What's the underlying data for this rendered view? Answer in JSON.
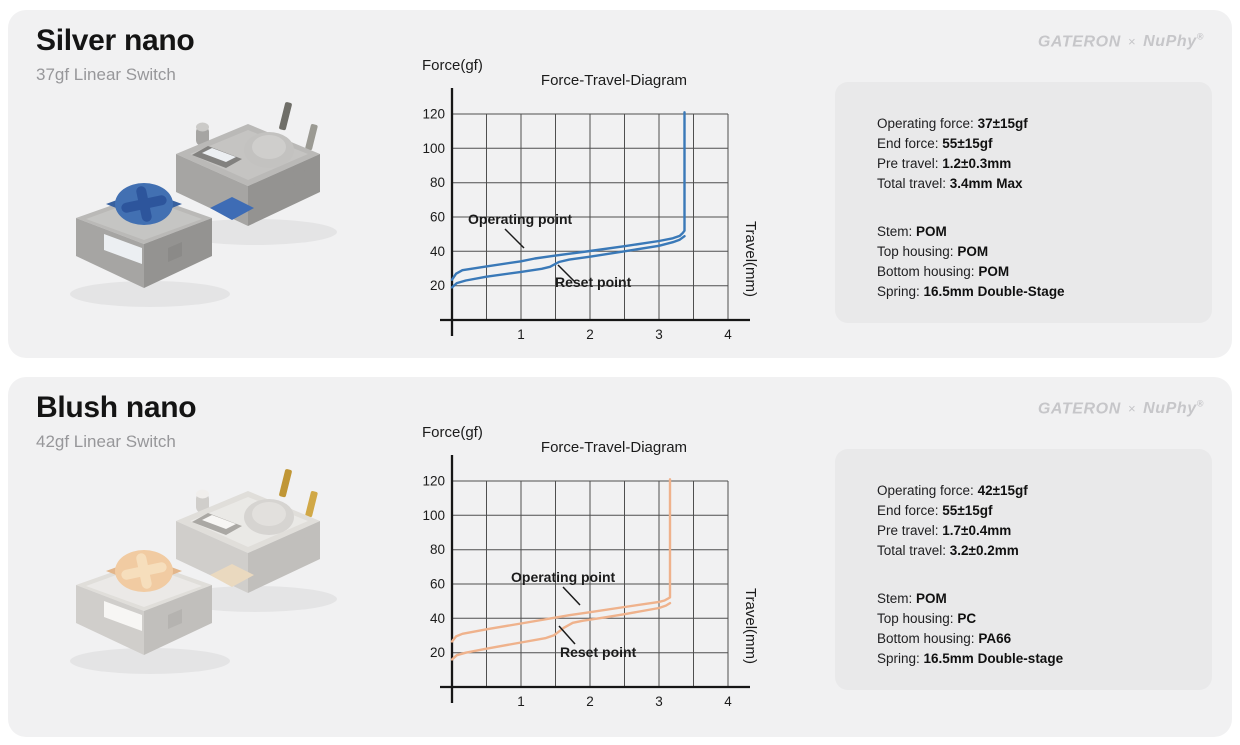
{
  "brand": {
    "gateron": "GATERON",
    "times": "×",
    "nuphy": "NuPhy",
    "reg": "®"
  },
  "cards": [
    {
      "title": "Silver nano",
      "subtitle": "37gf Linear Switch",
      "specs": {
        "group1": [
          {
            "label": "Operating force",
            "value": "37±15gf"
          },
          {
            "label": "End force",
            "value": "55±15gf"
          },
          {
            "label": "Pre travel",
            "value": "1.2±0.3mm"
          },
          {
            "label": "Total travel",
            "value": "3.4mm Max"
          }
        ],
        "group2": [
          {
            "label": "Stem",
            "value": "POM"
          },
          {
            "label": "Top housing",
            "value": "POM"
          },
          {
            "label": "Bottom housing",
            "value": "POM"
          },
          {
            "label": "Spring",
            "value": "16.5mm Double-Stage"
          }
        ]
      },
      "art": {
        "top": "#bab9b7",
        "left": "#a6a5a3",
        "right": "#949391",
        "rim": "#cbcac8",
        "wellDark": "#82817f",
        "window": "#eceff2",
        "dome": "#c3c2c0",
        "domeTop": "#cfcecc",
        "stem": "#4270b2",
        "stemDark": "#38619f",
        "cross": "#2d559c",
        "pin1": "#6f6e68",
        "pin2": "#9b9a93",
        "accent": "#3e6cb5"
      }
    },
    {
      "title": "Blush nano",
      "subtitle": "42gf Linear Switch",
      "specs": {
        "group1": [
          {
            "label": "Operating force",
            "value": "42±15gf"
          },
          {
            "label": "End force",
            "value": "55±15gf"
          },
          {
            "label": "Pre travel",
            "value": "1.7±0.4mm"
          },
          {
            "label": "Total travel",
            "value": "3.2±0.2mm"
          }
        ],
        "group2": [
          {
            "label": "Stem",
            "value": "POM"
          },
          {
            "label": "Top housing",
            "value": "PC"
          },
          {
            "label": "Bottom housing",
            "value": "PA66"
          },
          {
            "label": "Spring",
            "value": "16.5mm Double-stage"
          }
        ]
      },
      "art": {
        "top": "#e0deda",
        "left": "#d0cecb",
        "right": "#c1bfbc",
        "rim": "#f0eeec",
        "wellDark": "#aaa8a4",
        "window": "#f7f6f4",
        "dome": "#d6d4d1",
        "domeTop": "#e2e0dd",
        "stem": "#f1cba2",
        "stemDark": "#e3b68b",
        "cross": "#f6debc",
        "pin1": "#c09635",
        "pin2": "#d1a847",
        "accent": "#ead9bf"
      }
    }
  ],
  "chart_data": [
    {
      "type": "line",
      "title": "Force-Travel-Diagram",
      "xlabel": "Travel(mm)",
      "ylabel": "Force(gf)",
      "xlim": [
        0,
        4
      ],
      "ylim": [
        0,
        120
      ],
      "x_ticks": [
        1,
        2,
        3,
        4
      ],
      "y_ticks": [
        20,
        40,
        60,
        80,
        100,
        120
      ],
      "grid": true,
      "legend": "none",
      "annotations": [
        {
          "text": "Operating point",
          "x": 1.2,
          "y": 37
        },
        {
          "text": "Reset point",
          "x": 1.5,
          "y": 34
        }
      ],
      "series": [
        {
          "name": "press",
          "color": "#3a79b8",
          "points": [
            [
              0,
              23.5
            ],
            [
              0.06,
              27
            ],
            [
              0.15,
              29
            ],
            [
              0.5,
              31.2
            ],
            [
              1.0,
              34.2
            ],
            [
              1.2,
              35.8
            ],
            [
              1.5,
              37.5
            ],
            [
              2.0,
              40.2
            ],
            [
              2.5,
              43
            ],
            [
              3.0,
              46
            ],
            [
              3.2,
              47.6
            ],
            [
              3.3,
              49
            ],
            [
              3.34,
              50.5
            ],
            [
              3.37,
              52
            ],
            [
              3.37,
              121
            ]
          ]
        },
        {
          "name": "release",
          "color": "#3a79b8",
          "points": [
            [
              0,
              19
            ],
            [
              0.07,
              21.5
            ],
            [
              0.2,
              23
            ],
            [
              0.5,
              25.2
            ],
            [
              1.0,
              28
            ],
            [
              1.3,
              29.8
            ],
            [
              1.42,
              31
            ],
            [
              1.55,
              33.8
            ],
            [
              1.7,
              35.2
            ],
            [
              2.0,
              36.9
            ],
            [
              2.5,
              40
            ],
            [
              3.0,
              43.2
            ],
            [
              3.2,
              45.3
            ],
            [
              3.3,
              46.8
            ],
            [
              3.37,
              48.8
            ]
          ]
        }
      ]
    },
    {
      "type": "line",
      "title": "Force-Travel-Diagram",
      "xlabel": "Travel(mm)",
      "ylabel": "Force(gf)",
      "xlim": [
        0,
        4
      ],
      "ylim": [
        0,
        120
      ],
      "x_ticks": [
        1,
        2,
        3,
        4
      ],
      "y_ticks": [
        20,
        40,
        60,
        80,
        100,
        120
      ],
      "grid": true,
      "legend": "none",
      "annotations": [
        {
          "text": "Operating point",
          "x": 1.7,
          "y": 42
        },
        {
          "text": "Reset point",
          "x": 1.6,
          "y": 35
        }
      ],
      "series": [
        {
          "name": "press",
          "color": "#efb28c",
          "points": [
            [
              0,
              26.5
            ],
            [
              0.06,
              29.5
            ],
            [
              0.15,
              31
            ],
            [
              0.5,
              33.6
            ],
            [
              1.0,
              37
            ],
            [
              1.5,
              40.4
            ],
            [
              1.7,
              41.8
            ],
            [
              2.0,
              43.6
            ],
            [
              2.5,
              46.6
            ],
            [
              3.0,
              49.6
            ],
            [
              3.08,
              50.4
            ],
            [
              3.13,
              51.5
            ],
            [
              3.16,
              52.2
            ],
            [
              3.16,
              121
            ]
          ]
        },
        {
          "name": "release",
          "color": "#efb28c",
          "points": [
            [
              0,
              16
            ],
            [
              0.07,
              18.5
            ],
            [
              0.2,
              20
            ],
            [
              0.5,
              22.3
            ],
            [
              1.0,
              25.9
            ],
            [
              1.35,
              28.4
            ],
            [
              1.48,
              30.2
            ],
            [
              1.62,
              34.5
            ],
            [
              1.75,
              37.4
            ],
            [
              1.9,
              38.6
            ],
            [
              2.2,
              40.4
            ],
            [
              2.5,
              42.4
            ],
            [
              3.0,
              46
            ],
            [
              3.1,
              47.4
            ],
            [
              3.16,
              48.9
            ]
          ]
        }
      ]
    }
  ]
}
